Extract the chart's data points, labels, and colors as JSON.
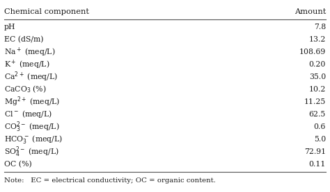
{
  "title_left": "Chemical component",
  "title_right": "Amount",
  "rows": [
    [
      "pH",
      "7.8"
    ],
    [
      "EC (dS/m)",
      "13.2"
    ],
    [
      "Na$^+$ (meq/L)",
      "108.69"
    ],
    [
      "K$^+$ (meq/L)",
      "0.20"
    ],
    [
      "Ca$^{2+}$ (meq/L)",
      "35.0"
    ],
    [
      "CaCO$_3$ (%)",
      "10.2"
    ],
    [
      "Mg$^{2+}$ (meq/L)",
      "11.25"
    ],
    [
      "Cl$^-$ (meq/L)",
      "62.5"
    ],
    [
      "CO$_3^{2-}$ (meq/L)",
      "0.6"
    ],
    [
      "HCO$_3^-$ (meq/L)",
      "5.0"
    ],
    [
      "SO$_4^{2-}$ (meq/L)",
      "72.91"
    ],
    [
      "OC (%)",
      "0.11"
    ]
  ],
  "note": "Note:   EC = electrical conductivity; OC = organic content.",
  "bg_color": "#ffffff",
  "header_line_color": "#555555",
  "text_color": "#1a1a1a",
  "font_size": 7.8,
  "header_font_size": 8.2,
  "note_font_size": 7.3
}
